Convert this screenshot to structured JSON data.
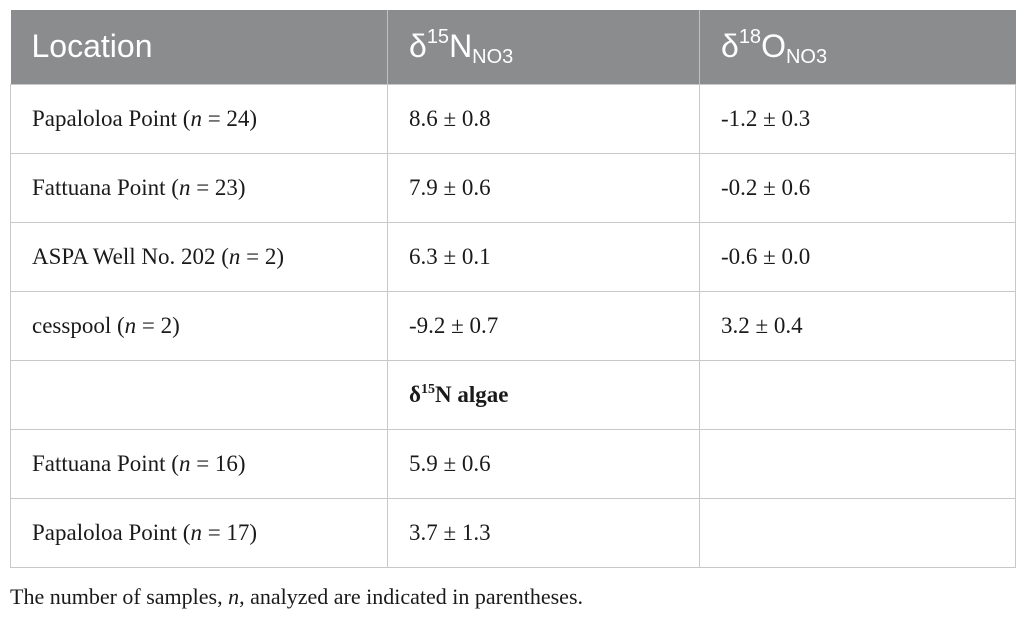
{
  "table": {
    "header": {
      "col1": "Location",
      "col2": {
        "prefix": "δ",
        "sup": "15",
        "base": "N",
        "sub": "NO3"
      },
      "col3": {
        "prefix": "δ",
        "sup": "18",
        "base": "O",
        "sub": "NO3"
      }
    },
    "rows": [
      {
        "loc_name": "Papaloloa Point (",
        "n_var": "n",
        "n_val": " = 24)",
        "d15n": "8.6 ± 0.8",
        "d18o": "-1.2 ± 0.3"
      },
      {
        "loc_name": "Fattuana Point (",
        "n_var": "n",
        "n_val": " = 23)",
        "d15n": "7.9 ± 0.6",
        "d18o": "-0.2 ± 0.6"
      },
      {
        "loc_name": "ASPA Well No. 202 (",
        "n_var": "n",
        "n_val": " = 2)",
        "d15n": "6.3 ± 0.1",
        "d18o": "-0.6 ± 0.0"
      },
      {
        "loc_name": "cesspool (",
        "n_var": "n",
        "n_val": " = 2)",
        "d15n": "-9.2 ± 0.7",
        "d18o": "3.2 ± 0.4"
      }
    ],
    "subheader": {
      "prefix": "δ",
      "sup": "15",
      "rest": "N algae"
    },
    "algae_rows": [
      {
        "loc_name": "Fattuana Point (",
        "n_var": "n",
        "n_val": " = 16)",
        "d15n": "5.9 ± 0.6"
      },
      {
        "loc_name": "Papaloloa Point (",
        "n_var": "n",
        "n_val": " = 17)",
        "d15n": "3.7 ± 1.3"
      }
    ]
  },
  "footnote": {
    "before": "The number of samples, ",
    "var": "n",
    "after": ", analyzed are indicated in parentheses."
  }
}
